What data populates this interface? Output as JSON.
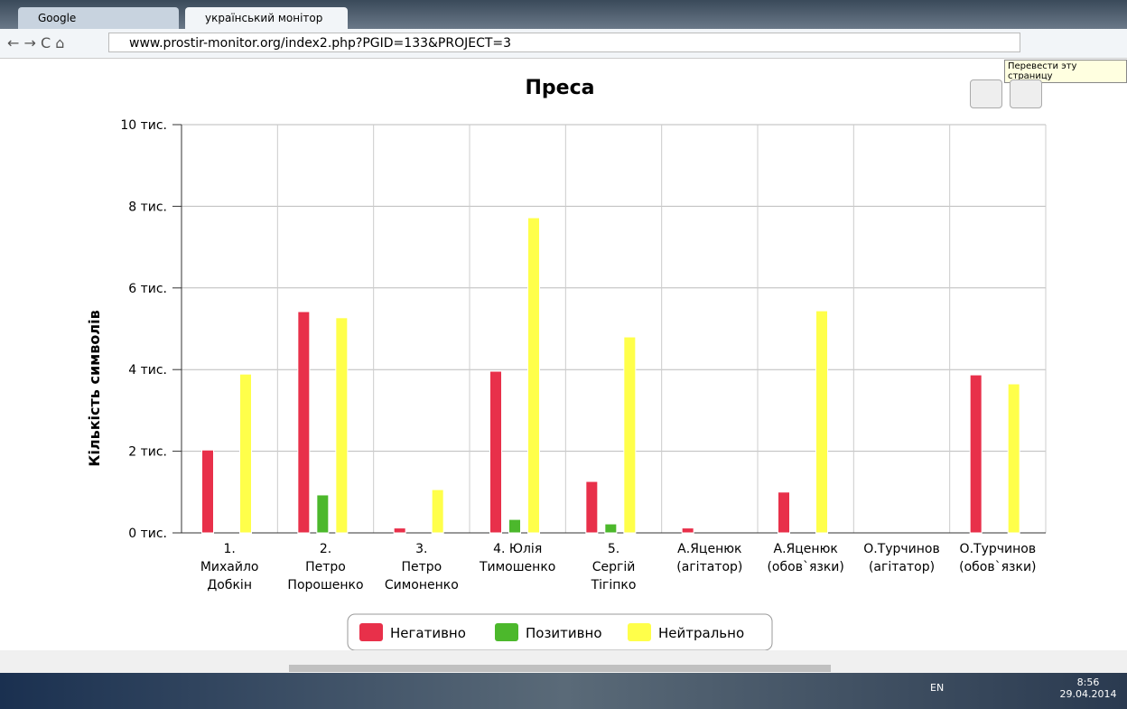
{
  "browser": {
    "tabs": [
      "Google",
      "український монітор"
    ],
    "url": "www.prostir-monitor.org/index2.php?PGID=133&PROJECT=3",
    "tooltip": "Перевести эту страницу"
  },
  "chart_data": {
    "type": "bar",
    "title": "Преса",
    "y_label": "Кількість символів",
    "categories": [
      [
        "1.",
        "Михайло",
        "Добкін"
      ],
      [
        "2.",
        "Петро",
        "Порошенко"
      ],
      [
        "3.",
        "Петро",
        "Симоненко"
      ],
      [
        "4. Юлія",
        "Тимошенко"
      ],
      [
        "5.",
        "Сергій",
        "Тігіпко"
      ],
      [
        "А.Яценюк",
        "(агітатор)"
      ],
      [
        "А.Яценюк",
        "(обов`язки)"
      ],
      [
        "О.Турчинов",
        "(агітатор)"
      ],
      [
        "О.Турчинов",
        "(обов`язки)"
      ]
    ],
    "series": [
      {
        "name": "Негативно",
        "color": "#e8304a",
        "values": [
          2030,
          5420,
          120,
          3960,
          1260,
          120,
          1000,
          0,
          3870
        ]
      },
      {
        "name": "Позитивно",
        "color": "#4cb82c",
        "values": [
          0,
          930,
          0,
          330,
          220,
          0,
          0,
          0,
          0
        ]
      },
      {
        "name": "Нейтрально",
        "color": "#ffff4a",
        "values": [
          3890,
          5270,
          1060,
          7720,
          4800,
          0,
          5440,
          0,
          3650
        ]
      }
    ],
    "ylim": [
      0,
      10000
    ],
    "yticks": [
      {
        "value": 0,
        "label": "0 тис."
      },
      {
        "value": 2000,
        "label": "2 тис."
      },
      {
        "value": 4000,
        "label": "4 тис."
      },
      {
        "value": 6000,
        "label": "6 тис."
      },
      {
        "value": 8000,
        "label": "8 тис."
      },
      {
        "value": 10000,
        "label": "10 тис."
      }
    ],
    "grid": true,
    "legend": "bottom"
  },
  "taskbar": {
    "language": "EN",
    "time": "8:56",
    "date": "29.04.2014"
  }
}
